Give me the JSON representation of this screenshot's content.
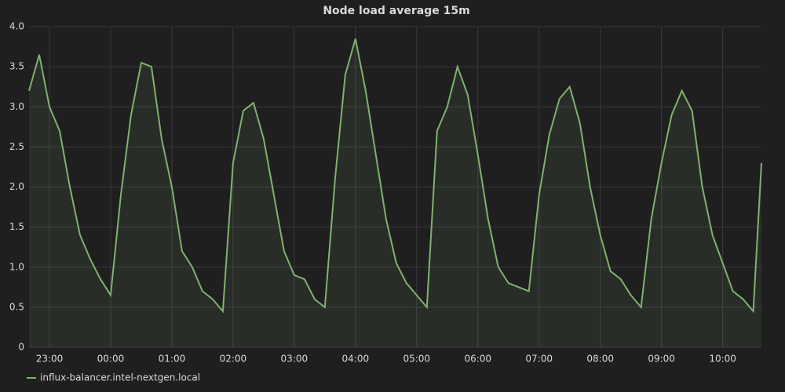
{
  "chart_data": {
    "type": "line",
    "title": "Node load average 15m",
    "x": [
      "22:40",
      "22:50",
      "23:00",
      "23:10",
      "23:20",
      "23:30",
      "23:40",
      "23:50",
      "00:00",
      "00:10",
      "00:20",
      "00:30",
      "00:40",
      "00:50",
      "01:00",
      "01:10",
      "01:20",
      "01:30",
      "01:40",
      "01:50",
      "02:00",
      "02:10",
      "02:20",
      "02:30",
      "02:40",
      "02:50",
      "03:00",
      "03:10",
      "03:20",
      "03:30",
      "03:40",
      "03:50",
      "04:00",
      "04:10",
      "04:20",
      "04:30",
      "04:40",
      "04:50",
      "05:00",
      "05:10",
      "05:20",
      "05:30",
      "05:40",
      "05:50",
      "06:00",
      "06:10",
      "06:20",
      "06:30",
      "06:40",
      "06:50",
      "07:00",
      "07:10",
      "07:20",
      "07:30",
      "07:40",
      "07:50",
      "08:00",
      "08:10",
      "08:20",
      "08:30",
      "08:40",
      "08:50",
      "09:00",
      "09:10",
      "09:20",
      "09:30",
      "09:40",
      "09:50",
      "10:00",
      "10:10",
      "10:20",
      "10:30",
      "10:38"
    ],
    "series": [
      {
        "name": "influx-balancer.intel-nextgen.local",
        "color": "#7eb26d",
        "values": [
          3.2,
          3.65,
          3.0,
          2.7,
          2.0,
          1.4,
          1.1,
          0.85,
          0.65,
          1.9,
          2.9,
          3.55,
          3.5,
          2.6,
          2.0,
          1.2,
          1.0,
          0.7,
          0.6,
          0.45,
          2.3,
          2.95,
          3.05,
          2.6,
          1.9,
          1.2,
          0.9,
          0.85,
          0.6,
          0.5,
          2.1,
          3.4,
          3.85,
          3.2,
          2.4,
          1.6,
          1.05,
          0.8,
          0.65,
          0.5,
          2.7,
          3.0,
          3.5,
          3.15,
          2.4,
          1.6,
          1.0,
          0.8,
          0.75,
          0.7,
          1.9,
          2.65,
          3.1,
          3.25,
          2.8,
          2.0,
          1.4,
          0.95,
          0.85,
          0.65,
          0.5,
          1.6,
          2.3,
          2.9,
          3.2,
          2.95,
          2.0,
          1.4,
          1.05,
          0.7,
          0.6,
          0.45,
          2.3
        ]
      }
    ],
    "xlim": [
      "22:40",
      "10:38"
    ],
    "xticks": [
      "23:00",
      "00:00",
      "01:00",
      "02:00",
      "03:00",
      "04:00",
      "05:00",
      "06:00",
      "07:00",
      "08:00",
      "09:00",
      "10:00"
    ],
    "ylim": [
      0,
      4
    ],
    "yticks": [
      0,
      0.5,
      {
        "value": 1,
        "label": "1.0"
      },
      1.5,
      {
        "value": 2,
        "label": "2.0"
      },
      2.5,
      {
        "value": 3,
        "label": "3.0"
      },
      3.5,
      {
        "value": 4,
        "label": "4.0"
      }
    ],
    "grid": true
  }
}
